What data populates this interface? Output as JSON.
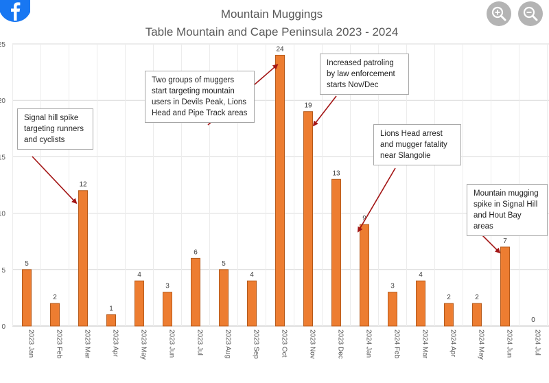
{
  "chart_data": {
    "type": "bar",
    "title": "Mountain Muggings",
    "subtitle": "Table Mountain and Cape Peninsula 2023 - 2024",
    "xlabel": "",
    "ylabel": "",
    "categories": [
      "2023 Jan",
      "2023 Feb",
      "2023 Mar",
      "2023 Apr",
      "2023 May",
      "2023 Jun",
      "2023 Jul",
      "2023 Aug",
      "2023 Sep",
      "2023 Oct",
      "2023 Nov",
      "2023 Dec",
      "2024 Jan",
      "2024 Feb",
      "2024 Mar",
      "2024 Apr",
      "2024 May",
      "2024 Jun",
      "2024 Jul"
    ],
    "values": [
      5,
      2,
      12,
      1,
      4,
      3,
      6,
      5,
      4,
      24,
      19,
      13,
      9,
      3,
      4,
      2,
      2,
      7,
      0
    ],
    "ylim": [
      0,
      25
    ],
    "yticks": [
      0,
      5,
      10,
      15,
      20,
      25
    ],
    "grid": true,
    "bar_color": "#ED7D31",
    "bar_edge_color": "#B55A1B",
    "annotations": [
      {
        "text": "Signal hill spike\ntargeting runners\nand cyclists",
        "target": "2023 Mar"
      },
      {
        "text": "Two groups of muggers\nstart targeting mountain\nusers in Devils Peak, Lions\nHead and Pipe Track areas",
        "target": "2023 Oct"
      },
      {
        "text": "Increased patroling\nby law enforcement\nstarts Nov/Dec",
        "target": "2023 Nov"
      },
      {
        "text": "Lions Head arrest\nand mugger fatality\nnear Slangolie",
        "target": "2024 Jan"
      },
      {
        "text": "Mountain mugging\nspike in Signal Hill\nand Hout Bay areas",
        "target": "2024 Jun"
      }
    ]
  },
  "ui": {
    "logo_icon": "facebook-logo-icon",
    "zoom_in_icon": "zoom-in-icon",
    "zoom_out_icon": "zoom-out-icon"
  }
}
